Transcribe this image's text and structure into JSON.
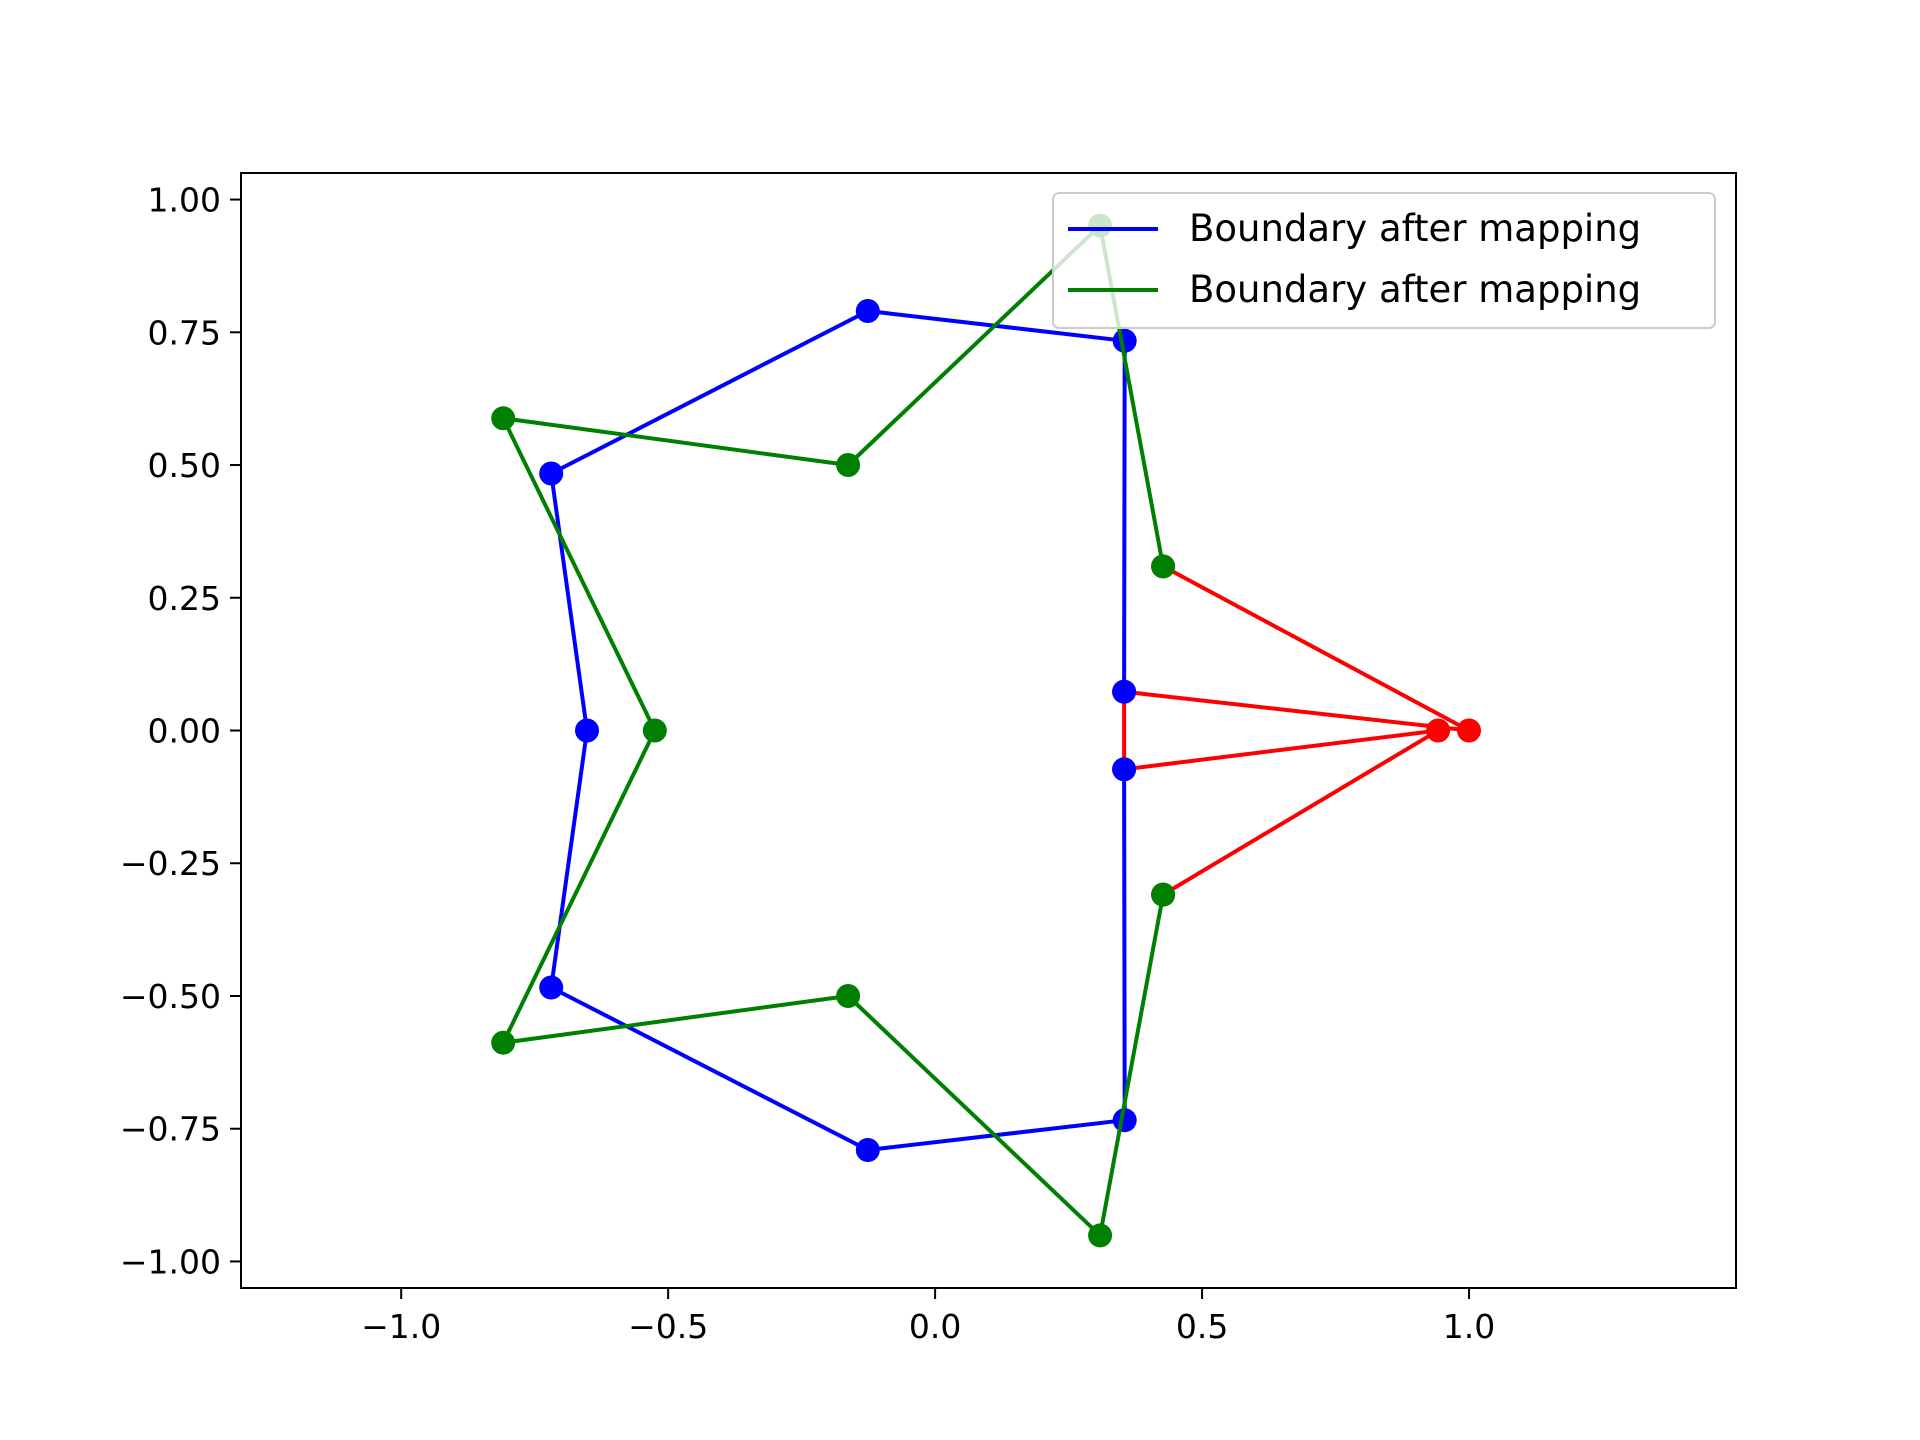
{
  "chart_data": {
    "type": "line",
    "title": "",
    "xlabel": "",
    "ylabel": "",
    "xlim": [
      -1.3,
      1.5
    ],
    "ylim": [
      -1.05,
      1.05
    ],
    "xticks": [
      -1.0,
      -0.5,
      0.0,
      0.5,
      1.0
    ],
    "xtick_labels": [
      "−1.0",
      "−0.5",
      "0.0",
      "0.5",
      "1.0"
    ],
    "yticks": [
      1.0,
      0.75,
      0.5,
      0.25,
      0.0,
      -0.25,
      -0.5,
      -0.75,
      -1.0
    ],
    "ytick_labels": [
      "1.00",
      "0.75",
      "0.50",
      "0.25",
      "0.00",
      "−0.25",
      "−0.50",
      "−0.75",
      "−1.00"
    ],
    "grid": false,
    "legend_location": "upper right",
    "legend_entries": [
      {
        "label": "Boundary after mapping",
        "color": "#0000ff"
      },
      {
        "label": "Boundary after mapping",
        "color": "#008000"
      }
    ],
    "series": [
      {
        "color": "#ff0000",
        "marker": "circle",
        "x": [
          0.427,
          1.0,
          0.354,
          0.354,
          0.942,
          0.427
        ],
        "y": [
          0.309,
          0.0,
          0.073,
          -0.073,
          0.0,
          -0.309
        ]
      },
      {
        "name": "Boundary after mapping",
        "color": "#0000ff",
        "marker": "circle",
        "x": [
          0.354,
          0.355,
          -0.126,
          -0.719,
          -0.652,
          -0.719,
          -0.126,
          0.355,
          0.354
        ],
        "y": [
          0.073,
          0.734,
          0.79,
          0.484,
          0.0,
          -0.484,
          -0.79,
          -0.734,
          -0.073
        ]
      },
      {
        "name": "Boundary after mapping",
        "color": "#008000",
        "marker": "circle",
        "x": [
          0.427,
          0.309,
          -0.163,
          -0.809,
          -0.525,
          -0.809,
          -0.163,
          0.309,
          0.427
        ],
        "y": [
          0.309,
          0.951,
          0.5,
          0.588,
          0.0,
          -0.588,
          -0.5,
          -0.951,
          -0.309
        ]
      }
    ]
  }
}
